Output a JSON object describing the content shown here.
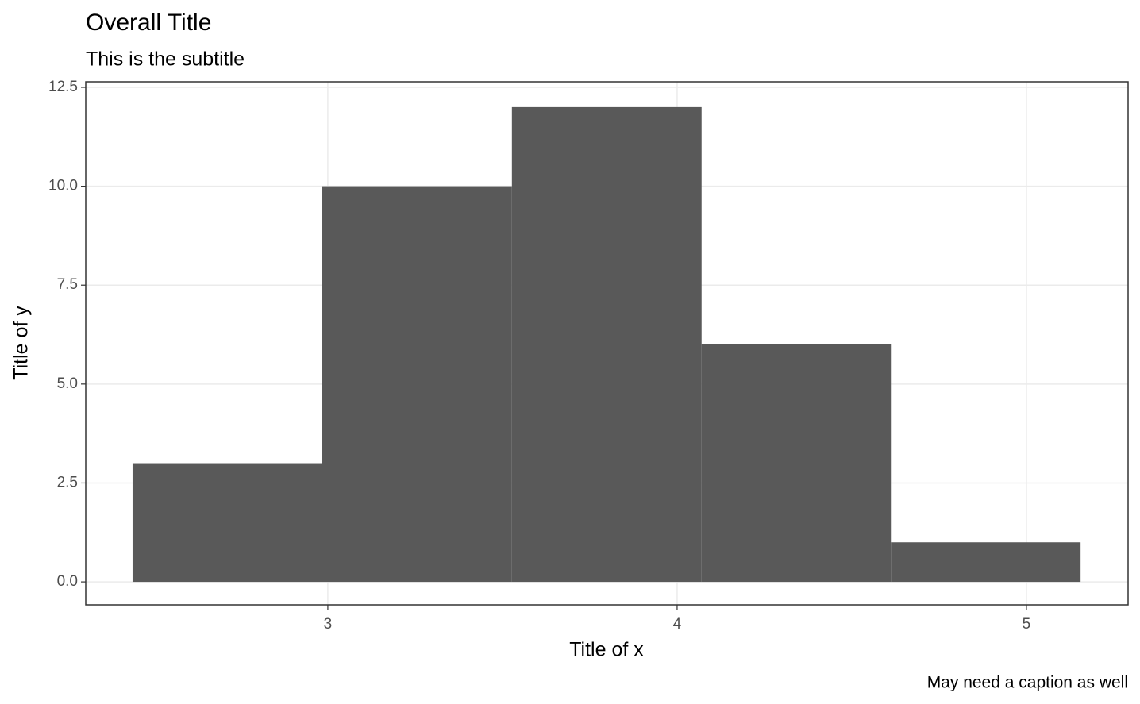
{
  "chart_data": {
    "type": "histogram",
    "title": "Overall Title",
    "subtitle": "This is the subtitle",
    "x_label": "Title of x",
    "y_label": "Title of y",
    "caption": "May need a caption as well",
    "bins": [
      2.441,
      2.984,
      3.527,
      4.07,
      4.612,
      5.155
    ],
    "values": [
      3,
      10,
      12,
      6,
      1
    ],
    "color": "#595959",
    "xlim": [
      2.307,
      5.291
    ],
    "ylim": [
      -0.58,
      12.64
    ],
    "xticks": [
      3,
      4,
      5
    ],
    "yticks": [
      {
        "value": 0,
        "label": "0.0"
      },
      {
        "value": 2.5,
        "label": "2.5"
      },
      {
        "value": 5,
        "label": "5.0"
      },
      {
        "value": 7.5,
        "label": "7.5"
      },
      {
        "value": 10,
        "label": "10.0"
      },
      {
        "value": 12.5,
        "label": "12.5"
      }
    ],
    "grid": true
  }
}
